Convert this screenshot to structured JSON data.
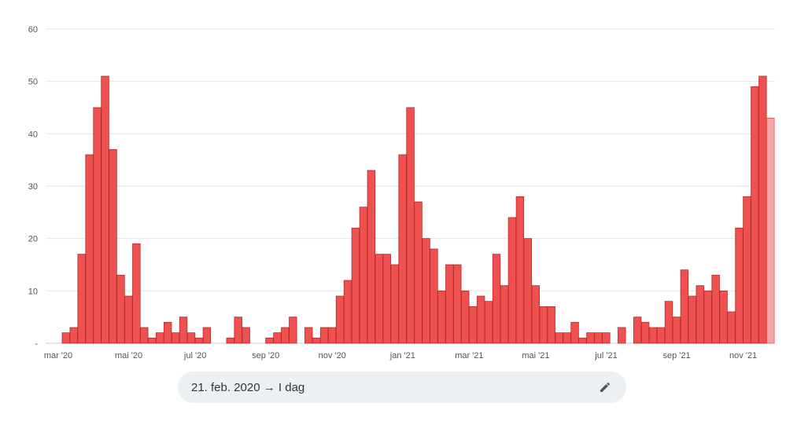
{
  "chart_data": {
    "type": "bar",
    "title": "",
    "xlabel": "",
    "ylabel": "",
    "ylim": [
      0,
      60
    ],
    "y_ticks": [
      "-",
      "10",
      "20",
      "30",
      "40",
      "50",
      "60"
    ],
    "x_ticks": [
      {
        "label": "mar '20",
        "index": 0
      },
      {
        "label": "mai '20",
        "index": 9
      },
      {
        "label": "jul '20",
        "index": 17.5
      },
      {
        "label": "sep '20",
        "index": 26.5
      },
      {
        "label": "nov '20",
        "index": 35
      },
      {
        "label": "jan '21",
        "index": 44
      },
      {
        "label": "mar '21",
        "index": 52.5
      },
      {
        "label": "mai '21",
        "index": 61
      },
      {
        "label": "jul '21",
        "index": 70
      },
      {
        "label": "sep '21",
        "index": 79
      },
      {
        "label": "nov '21",
        "index": 87.5
      }
    ],
    "grid": true,
    "bar_color": "#ef5050",
    "bar_border": "#b52a2a",
    "partial_color": "#f3a8a8",
    "values": [
      2,
      3,
      17,
      36,
      45,
      51,
      37,
      13,
      9,
      19,
      3,
      1,
      2,
      4,
      2,
      5,
      2,
      1,
      3,
      0,
      0,
      1,
      5,
      3,
      0,
      0,
      1,
      2,
      3,
      5,
      0,
      3,
      1,
      3,
      3,
      9,
      12,
      22,
      26,
      33,
      17,
      17,
      15,
      36,
      45,
      27,
      20,
      18,
      10,
      15,
      15,
      10,
      7,
      9,
      8,
      17,
      11,
      24,
      28,
      20,
      11,
      7,
      7,
      2,
      2,
      4,
      1,
      2,
      2,
      2,
      0,
      3,
      0,
      5,
      4,
      3,
      3,
      8,
      5,
      14,
      9,
      11,
      10,
      13,
      10,
      6,
      22,
      28,
      49,
      51,
      43
    ],
    "partial_last": true
  },
  "date_range": {
    "label": "21. feb. 2020 → I dag",
    "edit_icon": "pencil-icon"
  }
}
